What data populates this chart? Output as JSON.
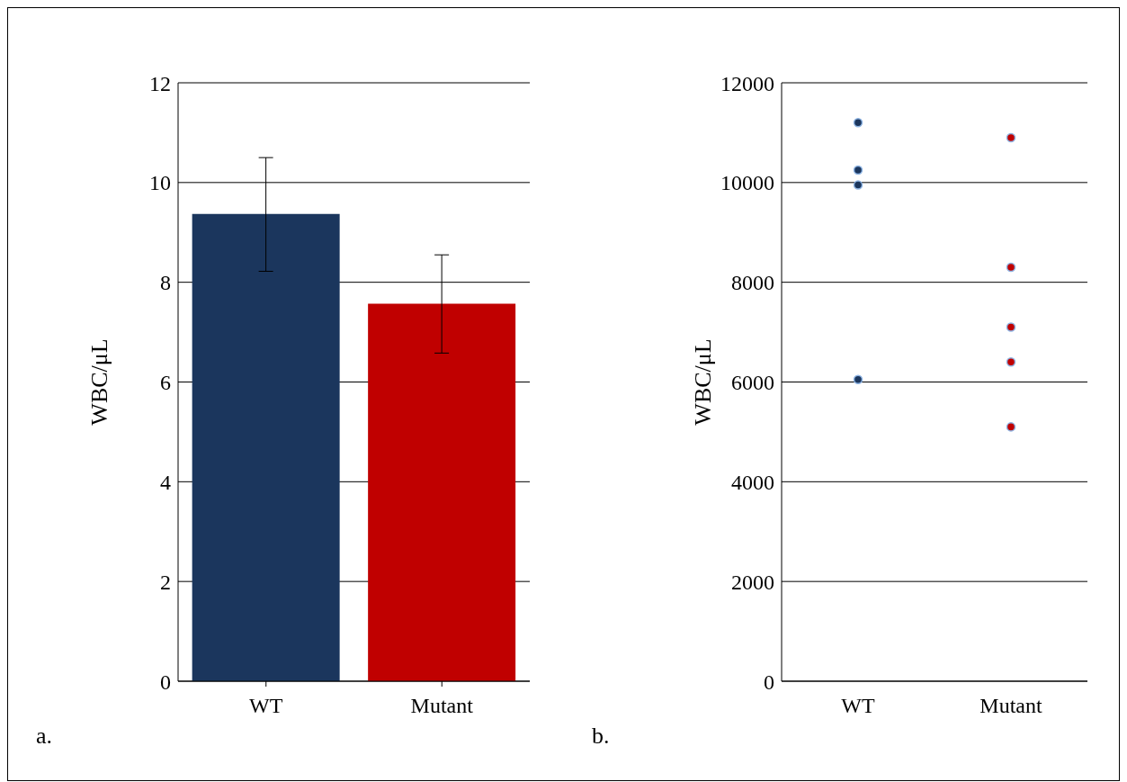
{
  "chart_data": [
    {
      "type": "bar",
      "ylabel": "WBC/μL",
      "categories": [
        "WT",
        "Mutant"
      ],
      "values": [
        9.37,
        7.57
      ],
      "colors": [
        "#1b365d",
        "#c00000"
      ],
      "errors": [
        [
          8.22,
          10.5
        ],
        [
          6.58,
          8.55
        ]
      ],
      "ylim": [
        0,
        12
      ],
      "yticks": [
        0,
        2,
        4,
        6,
        8,
        10,
        12
      ],
      "grid": "y",
      "annotations": [
        "a."
      ]
    },
    {
      "type": "scatter",
      "ylabel": "WBC/μL",
      "categories": [
        "WT",
        "Mutant"
      ],
      "marker": "circle",
      "ylim": [
        0,
        12000
      ],
      "yticks": [
        0,
        2000,
        4000,
        6000,
        8000,
        10000,
        12000
      ],
      "grid": "y",
      "annotations": [
        "b."
      ],
      "series": [
        {
          "color": "#1b365d",
          "x": [
            "WT",
            "WT",
            "WT",
            "WT"
          ],
          "values": [
            11200,
            10250,
            9950,
            6050
          ]
        },
        {
          "color": "#c00000",
          "x": [
            "Mutant",
            "Mutant",
            "Mutant",
            "Mutant",
            "Mutant"
          ],
          "values": [
            10900,
            8300,
            7100,
            6400,
            5100
          ]
        }
      ]
    }
  ]
}
